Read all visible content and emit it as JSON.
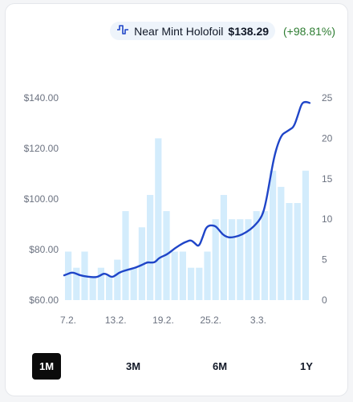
{
  "legend": {
    "series_name": "Near Mint Holofoil",
    "price": "$138.29",
    "change": "(+98.81%)"
  },
  "ranges": {
    "active": "1M",
    "items": [
      "1M",
      "3M",
      "6M",
      "1Y"
    ]
  },
  "colors": {
    "line": "#1f45c8",
    "bars": "#d3ecfc",
    "positive": "#2e7d32"
  },
  "chart_data": {
    "type": "line",
    "x_tick_labels": [
      "7.2.",
      "13.2.",
      "19.2.",
      "25.2.",
      "3.3."
    ],
    "x_tick_days": [
      0,
      6,
      12,
      18,
      24
    ],
    "y_left": {
      "ticks": [
        "$140.00",
        "$120.00",
        "$100.00",
        "$80.00",
        "$60.00"
      ],
      "lim": [
        60,
        140
      ]
    },
    "y_right": {
      "ticks": [
        "25",
        "20",
        "15",
        "10",
        "5",
        "0"
      ],
      "lim": [
        0,
        25
      ]
    },
    "series": [
      {
        "name": "Near Mint Holofoil",
        "kind": "line",
        "axis": "left",
        "points": [
          [
            0,
            69.8
          ],
          [
            0.5,
            70.4
          ],
          [
            1,
            71.0
          ],
          [
            1.5,
            70.5
          ],
          [
            2,
            69.8
          ],
          [
            3,
            69.2
          ],
          [
            4,
            69.0
          ],
          [
            4.5,
            69.6
          ],
          [
            5,
            70.6
          ],
          [
            5.5,
            70.0
          ],
          [
            6,
            69.0
          ],
          [
            6.5,
            69.8
          ],
          [
            7,
            71.0
          ],
          [
            8,
            72.0
          ],
          [
            9,
            72.8
          ],
          [
            10,
            74.2
          ],
          [
            10.5,
            75.0
          ],
          [
            11,
            74.8
          ],
          [
            11.5,
            75.0
          ],
          [
            12,
            76.8
          ],
          [
            13,
            78.0
          ],
          [
            14,
            80.6
          ],
          [
            15,
            82.5
          ],
          [
            15.5,
            83.2
          ],
          [
            16,
            83.8
          ],
          [
            16.5,
            82.5
          ],
          [
            17,
            81.0
          ],
          [
            17.5,
            85.0
          ],
          [
            18,
            89.5
          ],
          [
            19,
            89.6
          ],
          [
            19.5,
            88.0
          ],
          [
            20,
            86.0
          ],
          [
            20.5,
            85.0
          ],
          [
            21,
            84.7
          ],
          [
            22,
            85.3
          ],
          [
            23,
            86.8
          ],
          [
            24,
            89.2
          ],
          [
            25,
            93.0
          ],
          [
            25.5,
            99.0
          ],
          [
            26,
            108.0
          ],
          [
            26.5,
            116.5
          ],
          [
            27,
            122.0
          ],
          [
            27.5,
            125.5
          ],
          [
            28,
            126.5
          ],
          [
            28.5,
            127.5
          ],
          [
            29,
            128.5
          ],
          [
            29.5,
            133.0
          ],
          [
            30,
            138.0
          ],
          [
            30.5,
            138.5
          ],
          [
            31,
            138.0
          ]
        ]
      },
      {
        "name": "Volume",
        "kind": "bar",
        "axis": "right",
        "start_day": 0,
        "values": [
          6,
          4,
          6,
          3,
          4,
          3,
          5,
          11,
          4,
          9,
          13,
          20,
          11,
          6,
          6,
          4,
          4,
          6,
          10,
          13,
          10,
          10,
          10,
          11,
          11,
          16,
          14,
          12,
          12,
          16
        ]
      }
    ],
    "grid": false
  }
}
